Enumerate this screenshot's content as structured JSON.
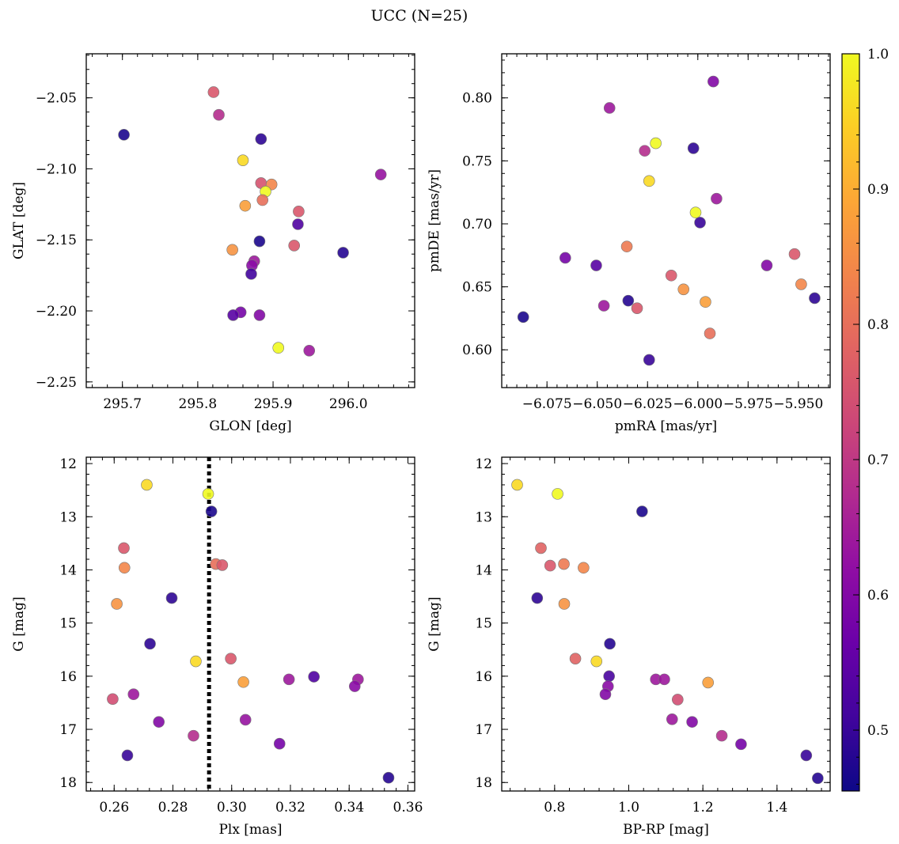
{
  "figure": {
    "title": "UCC (N=25)"
  },
  "colorbar": {
    "range": [
      0.455,
      1.0
    ],
    "ticks": [
      0.5,
      0.6,
      0.7,
      0.8,
      0.9,
      1.0
    ],
    "tick_labels": [
      "0.5",
      "0.6",
      "0.7",
      "0.8",
      "0.9",
      "1.0"
    ],
    "colormap": "plasma"
  },
  "chart_data": [
    {
      "id": "glon-glat",
      "type": "scatter",
      "xlabel": "GLON [deg]",
      "ylabel": "GLAT [deg]",
      "xlim": [
        295.652,
        296.088
      ],
      "ylim": [
        -2.254,
        -2.019
      ],
      "invert_y": false,
      "xticks": [
        295.7,
        295.8,
        295.9,
        296.0
      ],
      "xtick_labels": [
        "295.7",
        "295.8",
        "295.9",
        "296.0"
      ],
      "yticks": [
        -2.05,
        -2.1,
        -2.15,
        -2.2,
        -2.25
      ],
      "ytick_labels": [
        "−2.05",
        "−2.10",
        "−2.15",
        "−2.20",
        "−2.25"
      ],
      "points": [
        {
          "x": 295.821,
          "y": -2.046,
          "c": 0.76
        },
        {
          "x": 295.828,
          "y": -2.062,
          "c": 0.68
        },
        {
          "x": 295.702,
          "y": -2.076,
          "c": 0.47
        },
        {
          "x": 295.884,
          "y": -2.079,
          "c": 0.49
        },
        {
          "x": 295.86,
          "y": -2.094,
          "c": 0.96
        },
        {
          "x": 296.043,
          "y": -2.104,
          "c": 0.63
        },
        {
          "x": 295.884,
          "y": -2.11,
          "c": 0.75
        },
        {
          "x": 295.898,
          "y": -2.111,
          "c": 0.84
        },
        {
          "x": 295.89,
          "y": -2.116,
          "c": 1.0
        },
        {
          "x": 295.886,
          "y": -2.122,
          "c": 0.8
        },
        {
          "x": 295.863,
          "y": -2.126,
          "c": 0.88
        },
        {
          "x": 295.934,
          "y": -2.13,
          "c": 0.76
        },
        {
          "x": 295.933,
          "y": -2.139,
          "c": 0.53
        },
        {
          "x": 295.882,
          "y": -2.151,
          "c": 0.47
        },
        {
          "x": 295.928,
          "y": -2.154,
          "c": 0.76
        },
        {
          "x": 295.846,
          "y": -2.157,
          "c": 0.86
        },
        {
          "x": 295.993,
          "y": -2.159,
          "c": 0.48
        },
        {
          "x": 295.875,
          "y": -2.165,
          "c": 0.64
        },
        {
          "x": 295.872,
          "y": -2.168,
          "c": 0.61
        },
        {
          "x": 295.871,
          "y": -2.174,
          "c": 0.51
        },
        {
          "x": 295.857,
          "y": -2.201,
          "c": 0.58
        },
        {
          "x": 295.847,
          "y": -2.203,
          "c": 0.54
        },
        {
          "x": 295.882,
          "y": -2.203,
          "c": 0.6
        },
        {
          "x": 295.907,
          "y": -2.226,
          "c": 1.0
        },
        {
          "x": 295.948,
          "y": -2.228,
          "c": 0.64
        }
      ]
    },
    {
      "id": "pmra-pmde",
      "type": "scatter",
      "xlabel": "pmRA [mas/yr]",
      "ylabel": "pmDE [mas/yr]",
      "xlim": [
        -6.0975,
        -5.9342
      ],
      "ylim": [
        0.57,
        0.835
      ],
      "invert_y": false,
      "xticks": [
        -6.075,
        -6.05,
        -6.025,
        -6.0,
        -5.975,
        -5.95
      ],
      "xtick_labels": [
        "−6.075",
        "−6.050",
        "−6.025",
        "−6.000",
        "−5.975",
        "−5.950"
      ],
      "yticks": [
        0.6,
        0.65,
        0.7,
        0.75,
        0.8
      ],
      "ytick_labels": [
        "0.60",
        "0.65",
        "0.70",
        "0.75",
        "0.80"
      ],
      "points": [
        {
          "x": -5.9923,
          "y": 0.813,
          "c": 0.6
        },
        {
          "x": -6.0439,
          "y": 0.792,
          "c": 0.64
        },
        {
          "x": -6.0209,
          "y": 0.764,
          "c": 1.0
        },
        {
          "x": -6.0264,
          "y": 0.758,
          "c": 0.68
        },
        {
          "x": -6.0022,
          "y": 0.76,
          "c": 0.49
        },
        {
          "x": -6.0242,
          "y": 0.734,
          "c": 0.96
        },
        {
          "x": -5.9907,
          "y": 0.72,
          "c": 0.64
        },
        {
          "x": -6.0011,
          "y": 0.709,
          "c": 1.0
        },
        {
          "x": -5.9989,
          "y": 0.701,
          "c": 0.5
        },
        {
          "x": -6.0353,
          "y": 0.682,
          "c": 0.82
        },
        {
          "x": -5.9519,
          "y": 0.676,
          "c": 0.76
        },
        {
          "x": -6.0659,
          "y": 0.673,
          "c": 0.58
        },
        {
          "x": -5.9657,
          "y": 0.667,
          "c": 0.6
        },
        {
          "x": -6.0505,
          "y": 0.667,
          "c": 0.54
        },
        {
          "x": -5.9486,
          "y": 0.652,
          "c": 0.84
        },
        {
          "x": -6.0132,
          "y": 0.659,
          "c": 0.76
        },
        {
          "x": -6.0071,
          "y": 0.648,
          "c": 0.86
        },
        {
          "x": -5.9419,
          "y": 0.641,
          "c": 0.49
        },
        {
          "x": -6.0346,
          "y": 0.639,
          "c": 0.48
        },
        {
          "x": -5.9962,
          "y": 0.638,
          "c": 0.88
        },
        {
          "x": -6.0467,
          "y": 0.635,
          "c": 0.64
        },
        {
          "x": -6.0302,
          "y": 0.633,
          "c": 0.76
        },
        {
          "x": -5.994,
          "y": 0.613,
          "c": 0.8
        },
        {
          "x": -6.0868,
          "y": 0.626,
          "c": 0.47
        },
        {
          "x": -6.0242,
          "y": 0.592,
          "c": 0.5
        }
      ]
    },
    {
      "id": "plx-g",
      "type": "scatter",
      "xlabel": "Plx [mas]",
      "ylabel": "G [mag]",
      "xlim": [
        0.2505,
        0.3623
      ],
      "ylim": [
        11.88,
        18.16
      ],
      "invert_y": true,
      "xticks": [
        0.26,
        0.28,
        0.3,
        0.32,
        0.34,
        0.36
      ],
      "xtick_labels": [
        "0.26",
        "0.28",
        "0.30",
        "0.32",
        "0.34",
        "0.36"
      ],
      "yticks": [
        12,
        13,
        14,
        15,
        16,
        17,
        18
      ],
      "ytick_labels": [
        "12",
        "13",
        "14",
        "15",
        "16",
        "17",
        "18"
      ],
      "vline": {
        "x": 0.2923,
        "style": "dotted"
      },
      "points": [
        {
          "x": 0.2711,
          "y": 12.4,
          "c": 0.96
        },
        {
          "x": 0.292,
          "y": 12.57,
          "c": 1.0
        },
        {
          "x": 0.2931,
          "y": 12.9,
          "c": 0.47
        },
        {
          "x": 0.2633,
          "y": 13.59,
          "c": 0.76
        },
        {
          "x": 0.2635,
          "y": 13.96,
          "c": 0.84
        },
        {
          "x": 0.2946,
          "y": 13.89,
          "c": 0.8
        },
        {
          "x": 0.2968,
          "y": 13.91,
          "c": 0.76
        },
        {
          "x": 0.2796,
          "y": 14.53,
          "c": 0.49
        },
        {
          "x": 0.2609,
          "y": 14.64,
          "c": 0.86
        },
        {
          "x": 0.2722,
          "y": 15.39,
          "c": 0.49
        },
        {
          "x": 0.2878,
          "y": 15.72,
          "c": 0.96
        },
        {
          "x": 0.2997,
          "y": 15.67,
          "c": 0.76
        },
        {
          "x": 0.304,
          "y": 16.11,
          "c": 0.88
        },
        {
          "x": 0.3195,
          "y": 16.06,
          "c": 0.64
        },
        {
          "x": 0.328,
          "y": 16.01,
          "c": 0.53
        },
        {
          "x": 0.343,
          "y": 16.06,
          "c": 0.64
        },
        {
          "x": 0.3419,
          "y": 16.19,
          "c": 0.61
        },
        {
          "x": 0.2595,
          "y": 16.43,
          "c": 0.74
        },
        {
          "x": 0.2666,
          "y": 16.34,
          "c": 0.64
        },
        {
          "x": 0.2752,
          "y": 16.86,
          "c": 0.6
        },
        {
          "x": 0.3047,
          "y": 16.82,
          "c": 0.63
        },
        {
          "x": 0.287,
          "y": 17.12,
          "c": 0.68
        },
        {
          "x": 0.3163,
          "y": 17.27,
          "c": 0.58
        },
        {
          "x": 0.2645,
          "y": 17.49,
          "c": 0.5
        },
        {
          "x": 0.3534,
          "y": 17.91,
          "c": 0.48
        }
      ]
    },
    {
      "id": "bprp-g",
      "type": "scatter",
      "xlabel": "BP-RP [mag]",
      "ylabel": "G [mag]",
      "xlim": [
        0.6573,
        1.5434
      ],
      "ylim": [
        11.88,
        18.16
      ],
      "invert_y": true,
      "xticks": [
        0.8,
        1.0,
        1.2,
        1.4
      ],
      "xtick_labels": [
        "0.8",
        "1.0",
        "1.2",
        "1.4"
      ],
      "yticks": [
        12,
        13,
        14,
        15,
        16,
        17,
        18
      ],
      "ytick_labels": [
        "12",
        "13",
        "14",
        "15",
        "16",
        "17",
        "18"
      ],
      "points": [
        {
          "x": 0.699,
          "y": 12.4,
          "c": 0.96
        },
        {
          "x": 0.808,
          "y": 12.57,
          "c": 1.0
        },
        {
          "x": 1.036,
          "y": 12.9,
          "c": 0.47
        },
        {
          "x": 0.763,
          "y": 13.59,
          "c": 0.78
        },
        {
          "x": 0.788,
          "y": 13.92,
          "c": 0.76
        },
        {
          "x": 0.825,
          "y": 13.89,
          "c": 0.82
        },
        {
          "x": 0.878,
          "y": 13.96,
          "c": 0.84
        },
        {
          "x": 0.753,
          "y": 14.53,
          "c": 0.49
        },
        {
          "x": 0.826,
          "y": 14.64,
          "c": 0.86
        },
        {
          "x": 0.949,
          "y": 15.39,
          "c": 0.48
        },
        {
          "x": 0.856,
          "y": 15.67,
          "c": 0.78
        },
        {
          "x": 0.913,
          "y": 15.72,
          "c": 0.96
        },
        {
          "x": 0.947,
          "y": 16.0,
          "c": 0.52
        },
        {
          "x": 0.944,
          "y": 16.19,
          "c": 0.61
        },
        {
          "x": 0.937,
          "y": 16.34,
          "c": 0.6
        },
        {
          "x": 1.073,
          "y": 16.06,
          "c": 0.64
        },
        {
          "x": 1.096,
          "y": 16.06,
          "c": 0.64
        },
        {
          "x": 1.214,
          "y": 16.12,
          "c": 0.88
        },
        {
          "x": 1.132,
          "y": 16.44,
          "c": 0.74
        },
        {
          "x": 1.117,
          "y": 16.81,
          "c": 0.64
        },
        {
          "x": 1.171,
          "y": 16.86,
          "c": 0.6
        },
        {
          "x": 1.251,
          "y": 17.12,
          "c": 0.68
        },
        {
          "x": 1.303,
          "y": 17.28,
          "c": 0.58
        },
        {
          "x": 1.479,
          "y": 17.49,
          "c": 0.5
        },
        {
          "x": 1.51,
          "y": 17.92,
          "c": 0.48
        }
      ]
    }
  ]
}
